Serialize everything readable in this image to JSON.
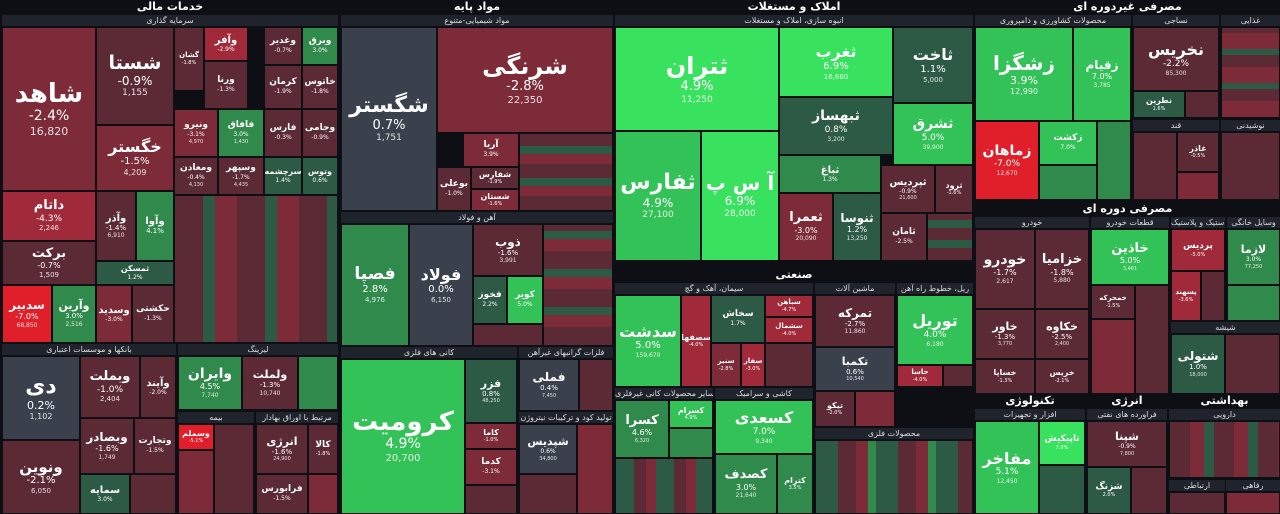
{
  "sections": {
    "financial": {
      "title": "خدمات مالی",
      "subs": {
        "insurance_inv": "سرمایه گذاری",
        "banks": "بانکها و موسسات اعتباری",
        "leasing": "لیزینگ",
        "insurance": "بیمه",
        "brokerage": "مرتبط با اوراق بهادار"
      }
    },
    "basic": {
      "title": "مواد پایه",
      "subs": {
        "chemical": "مواد شیمیایی-متنوع",
        "steel": "آهن و فولاد",
        "metals": "کانی های فلزی",
        "precious": "فلزات گرانبهای غیرآهن",
        "cable": "تولید کود و ترکیبات نیتروژن"
      }
    },
    "realestate": {
      "title": "املاک و مستغلات",
      "subs": {
        "construction": "انبوه سازی، املاک و مستغلات"
      }
    },
    "industrial": {
      "title": "صنعتی",
      "subs": {
        "cement": "سیمان، آهک و گچ",
        "machinery": "ماشین آلات",
        "rail": "ریل، خطوط راه آهن",
        "nonmetal": "سایر محصولات کانی غیرفلزی",
        "tile": "کاشی و سرامیک",
        "metalprod": "محصولات فلزی"
      }
    },
    "nondurable": {
      "title": "مصرفی غیردوره ای",
      "subs": {
        "agri": "محصولات کشاورزی و دامپروری",
        "textile": "نساجی",
        "food": "غذایی",
        "sugar": "قند",
        "beverage": "نوشیدنی"
      }
    },
    "durable": {
      "title": "مصرفی دوره ای",
      "subs": {
        "auto": "خودرو",
        "parts": "قطعات خودرو",
        "vehicles": "وسایل خانگی",
        "rubber": "لاستیک و پلاستیک",
        "glass": "شیشه"
      }
    },
    "tech": {
      "title": "تکنولوژی",
      "subs": {
        "hardware": "افزار و تجهیزات"
      }
    },
    "energy": {
      "title": "انرژی",
      "subs": {
        "refinery": "فراورده های نفتی"
      }
    },
    "health": {
      "title": "بهداشتی",
      "subs": {
        "pharma": "دارویی"
      }
    },
    "utility": {
      "subs": {
        "telecom": "ارتباطی",
        "welfare": "رفاهی"
      }
    }
  },
  "tiles": {
    "shahed": {
      "name": "شاهد",
      "pct": "-2.4%",
      "price": "16,820"
    },
    "shasta": {
      "name": "شستا",
      "pct": "-0.9%",
      "price": "1,155"
    },
    "khegastar": {
      "name": "خگستر",
      "pct": "-1.5%",
      "price": "4,209"
    },
    "datam": {
      "name": "داتام",
      "pct": "-4.3%",
      "price": "2,246"
    },
    "barakat": {
      "name": "برکت",
      "pct": "-0.7%",
      "price": "1,509"
    },
    "sadbir": {
      "name": "سدبیر",
      "pct": "-7.0%",
      "price": "68,850"
    },
    "varyan": {
      "name": "وآرین",
      "pct": "3.0%",
      "price": "2,516"
    },
    "vasdid": {
      "name": "وسدید",
      "pct": "-3.0%",
      "price": ""
    },
    "hekshti": {
      "name": "حکشتی",
      "pct": "-1.3%",
      "price": ""
    },
    "vaazar": {
      "name": "وآذر",
      "pct": "-1.4%",
      "price": "6,910"
    },
    "vaava": {
      "name": "وآوا",
      "pct": "4.1%",
      "price": ""
    },
    "tmsken": {
      "name": "ثمسکن",
      "pct": "1.2%",
      "price": ""
    },
    "vaafar": {
      "name": "وآفر",
      "pct": "-2.9%",
      "price": ""
    },
    "gashan": {
      "name": "گشان",
      "pct": "-1.8%",
      "price": ""
    },
    "vorna": {
      "name": "ورنا",
      "pct": "-1.3%",
      "price": ""
    },
    "vaghadir": {
      "name": "وغدیر",
      "pct": "-0.7%",
      "price": ""
    },
    "varegh": {
      "name": "وبرق",
      "pct": "3.0%",
      "price": ""
    },
    "kerman": {
      "name": "کرمان",
      "pct": "-1.9%",
      "price": ""
    },
    "khotoos": {
      "name": "خاتوس",
      "pct": "-1.8%",
      "price": ""
    },
    "vanirow": {
      "name": "ونیرو",
      "pct": "-3.1%",
      "price": "4,970"
    },
    "fafagh": {
      "name": "فافاق",
      "pct": "3.0%",
      "price": "1,430"
    },
    "fars": {
      "name": "فارس",
      "pct": "-0.3%",
      "price": ""
    },
    "vajami": {
      "name": "وجامی",
      "pct": "-0.9%",
      "price": ""
    },
    "vamaadan": {
      "name": "ومعادن",
      "pct": "-0.4%",
      "price": "4,130"
    },
    "vasehpehr": {
      "name": "وسپهر",
      "pct": "-1.7%",
      "price": "4,435"
    },
    "sarchashme": {
      "name": "سرچشمه",
      "pct": "1.4%",
      "price": ""
    },
    "vatoos": {
      "name": "وتوس",
      "pct": "0.6%",
      "price": ""
    },
    "day": {
      "name": "دی",
      "pct": "0.2%",
      "price": "1,102"
    },
    "vabemellat": {
      "name": "وبملت",
      "pct": "-1.0%",
      "price": "2,404"
    },
    "vaayandeh": {
      "name": "وآیند",
      "pct": "-2.0%",
      "price": ""
    },
    "vabsader": {
      "name": "وبصادر",
      "pct": "-1.6%",
      "price": "1,749"
    },
    "vatejarat": {
      "name": "وتجارت",
      "pct": "-1.5%",
      "price": ""
    },
    "vanovin": {
      "name": "ونوین",
      "pct": "-2.1%",
      "price": "6,050"
    },
    "semaye": {
      "name": "سمایه",
      "pct": "3.0%",
      "price": ""
    },
    "vairan": {
      "name": "وایران",
      "pct": "4.5%",
      "price": "7,740"
    },
    "velmelat": {
      "name": "ولملت",
      "pct": "-1.3%",
      "price": "10,740"
    },
    "vesmelat": {
      "name": "وسملم",
      "pct": "-5.1%",
      "price": ""
    },
    "anergy": {
      "name": "انرژی",
      "pct": "-1.6%",
      "price": "24,900"
    },
    "kala": {
      "name": "کالا",
      "pct": "-1.8%",
      "price": ""
    },
    "farabours": {
      "name": "فرابورس",
      "pct": "-1.5%",
      "price": ""
    },
    "shegostar": {
      "name": "شگستر",
      "pct": "0.7%",
      "price": "1,751"
    },
    "sharangi": {
      "name": "شرنگی",
      "pct": "-2.8%",
      "price": "22,350"
    },
    "arya": {
      "name": "آریا",
      "pct": "3.9%",
      "price": ""
    },
    "boali": {
      "name": "بوعلی",
      "pct": "-1.0%",
      "price": ""
    },
    "shafars": {
      "name": "شفارس",
      "pct": "-1.9%",
      "price": ""
    },
    "shesatan": {
      "name": "شستان",
      "pct": "-1.6%",
      "price": ""
    },
    "fesapa": {
      "name": "فصپا",
      "pct": "2.8%",
      "price": "4,976"
    },
    "foolad": {
      "name": "فولاد",
      "pct": "0.0%",
      "price": "6,150"
    },
    "zob": {
      "name": "ذوب",
      "pct": "-1.6%",
      "price": "3,991"
    },
    "fakhooz": {
      "name": "فخوز",
      "pct": "2.2%",
      "price": ""
    },
    "kavir": {
      "name": "کویر",
      "pct": "5.0%",
      "price": ""
    },
    "kromit": {
      "name": "کرومیت",
      "pct": "4.9%",
      "price": "20,700"
    },
    "fameli": {
      "name": "فملی",
      "pct": "0.4%",
      "price": "7,450"
    },
    "fazar": {
      "name": "فزر",
      "pct": "0.8%",
      "price": "48,250"
    },
    "kama": {
      "name": "کاما",
      "pct": "-1.0%",
      "price": ""
    },
    "kadma": {
      "name": "کدما",
      "pct": "-3.1%",
      "price": ""
    },
    "shpdis": {
      "name": "شپدیس",
      "pct": "0.6%",
      "price": "34,800"
    },
    "sokhtan": {
      "name": "ثتران",
      "pct": "4.9%",
      "price": "11,250"
    },
    "tafars": {
      "name": "ثفارس",
      "pct": "4.9%",
      "price": "27,100"
    },
    "asp": {
      "name": "آ س پ",
      "pct": "6.9%",
      "price": "28,000"
    },
    "taghrob": {
      "name": "ثغرب",
      "pct": "6.9%",
      "price": "16,660"
    },
    "takht": {
      "name": "ثاخت",
      "pct": "1.1%",
      "price": "5,000"
    },
    "tahsaz": {
      "name": "ثبهساز",
      "pct": "0.8%",
      "price": "3,200"
    },
    "tasharq": {
      "name": "ثشرق",
      "pct": "5.0%",
      "price": "39,900"
    },
    "tabagh": {
      "name": "ثباغ",
      "pct": "1.3%",
      "price": ""
    },
    "tapardis": {
      "name": "ثپردیس",
      "pct": "-0.9%",
      "price": "21,600"
    },
    "tarood": {
      "name": "ثرود",
      "pct": "-1.6%",
      "price": ""
    },
    "taomran": {
      "name": "ثعمرا",
      "pct": "-3.0%",
      "price": "20,090"
    },
    "tavsa": {
      "name": "ثنوسا",
      "pct": "1.2%",
      "price": "13,250"
    },
    "tamaman": {
      "name": "ثامان",
      "pct": "-2.5%",
      "price": ""
    },
    "sedasht": {
      "name": "سدشت",
      "pct": "5.0%",
      "price": "159,670"
    },
    "sefoha": {
      "name": "سصفها",
      "pct": "-4.0%",
      "price": ""
    },
    "sakhash": {
      "name": "سخاش",
      "pct": "1.7%",
      "price": ""
    },
    "sabahan": {
      "name": "سباهن",
      "pct": "-4.7%",
      "price": ""
    },
    "sekhash": {
      "name": "سشمال",
      "pct": "-4.0%",
      "price": ""
    },
    "sehnir": {
      "name": "سنیر",
      "pct": "-2.8%",
      "price": ""
    },
    "safar": {
      "name": "سفار",
      "pct": "-3.0%",
      "price": ""
    },
    "tamrakeh": {
      "name": "تمرکه",
      "pct": "-2.7%",
      "price": "11,860"
    },
    "tekmba": {
      "name": "تکمبا",
      "pct": "0.6%",
      "price": "10,540"
    },
    "tokko": {
      "name": "تیکو",
      "pct": "-2.0%",
      "price": ""
    },
    "tooril": {
      "name": "توریل",
      "pct": "4.0%",
      "price": "6,180"
    },
    "hasina": {
      "name": "حاسا",
      "pct": "-4.0%",
      "price": ""
    },
    "kesra": {
      "name": "کسرا",
      "pct": "4.6%",
      "price": "6,320"
    },
    "kesram": {
      "name": "کسرام",
      "pct": "4.9%",
      "price": ""
    },
    "kosaedi": {
      "name": "کسعدی",
      "pct": "7.0%",
      "price": "9,340"
    },
    "kesadf": {
      "name": "کصدف",
      "pct": "3.0%",
      "price": "21,640"
    },
    "ketram": {
      "name": "کترام",
      "pct": "3.5%",
      "price": ""
    },
    "zagros": {
      "name": "زشگزا",
      "pct": "3.9%",
      "price": "12,990"
    },
    "zaghiam": {
      "name": "زقیام",
      "pct": "7.0%",
      "price": "3,785"
    },
    "zamahan": {
      "name": "زماهان",
      "pct": "-7.0%",
      "price": "12,670"
    },
    "zakesht": {
      "name": "زکشت",
      "pct": "7.0%",
      "price": ""
    },
    "nakhris": {
      "name": "نخریس",
      "pct": "-2.2%",
      "price": "85,300"
    },
    "natrin": {
      "name": "نطرین",
      "pct": "1.6%",
      "price": ""
    },
    "ghazar": {
      "name": "غاذر",
      "pct": "-0.5%",
      "price": ""
    },
    "khodro": {
      "name": "خودرو",
      "pct": "-1.7%",
      "price": "2,617"
    },
    "khazamia": {
      "name": "خزامیا",
      "pct": "-1.8%",
      "price": "5,880"
    },
    "khaver": {
      "name": "خاور",
      "pct": "-1.3%",
      "price": "3,770"
    },
    "khakoh": {
      "name": "خکاوه",
      "pct": "-2.5%",
      "price": "2,400"
    },
    "khrisa": {
      "name": "خساپا",
      "pct": "-1.3%",
      "price": ""
    },
    "khiran": {
      "name": "خریس",
      "pct": "-2.1%",
      "price": ""
    },
    "khadin": {
      "name": "خاذین",
      "pct": "5.0%",
      "price": "3,461"
    },
    "khamohra": {
      "name": "خمحرکه",
      "pct": "-1.5%",
      "price": ""
    },
    "pardis": {
      "name": "پردیس",
      "pct": "-5.0%",
      "price": ""
    },
    "pasahand": {
      "name": "پسهند",
      "pct": "-3.6%",
      "price": ""
    },
    "lazma": {
      "name": "لازما",
      "pct": "3.0%",
      "price": "77,250"
    },
    "shetoli": {
      "name": "شتولی",
      "pct": "1.0%",
      "price": "18,000"
    },
    "mafakher": {
      "name": "مفاخر",
      "pct": "5.1%",
      "price": "12,450"
    },
    "tapikish": {
      "name": "تاپیکیش",
      "pct": "7.0%",
      "price": ""
    },
    "shana": {
      "name": "شپنا",
      "pct": "-0.9%",
      "price": "7,800"
    },
    "shazang": {
      "name": "شزنگ",
      "pct": "2.0%",
      "price": ""
    }
  },
  "colors": {
    "strong_red": "#e01f2a",
    "strong_green": "#38e25e",
    "neutral": "#3b414c",
    "background": "#0d0f14"
  }
}
